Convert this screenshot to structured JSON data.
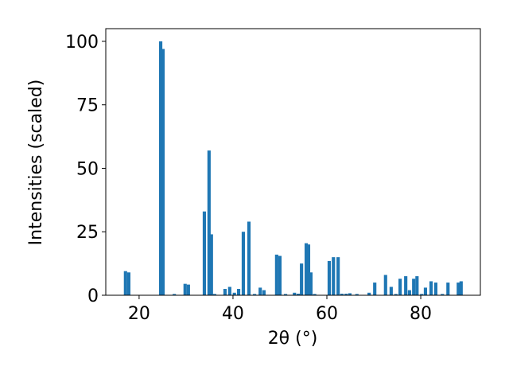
{
  "chart_data": {
    "type": "bar",
    "xlabel": "2θ (°)",
    "ylabel": "Intensities (scaled)",
    "x": [
      17.1,
      17.8,
      24.6,
      25.1,
      27.5,
      29.8,
      30.5,
      33.9,
      34.9,
      35.4,
      36.1,
      38.3,
      39.3,
      40.3,
      41.2,
      42.2,
      43.4,
      44.6,
      45.8,
      46.6,
      49.3,
      50.0,
      51.2,
      53.1,
      53.9,
      54.6,
      55.6,
      56.1,
      56.6,
      57.4,
      60.5,
      61.4,
      62.4,
      63.2,
      64.1,
      64.9,
      66.4,
      69.0,
      70.2,
      72.5,
      73.7,
      74.7,
      75.6,
      76.8,
      77.6,
      78.5,
      79.2,
      80.2,
      81.0,
      82.2,
      83.2,
      84.6,
      85.8,
      88.0,
      88.6
    ],
    "values": [
      9.5,
      9,
      100,
      97,
      0.5,
      4.5,
      4.2,
      33,
      57,
      24,
      0.5,
      2.5,
      3.3,
      1,
      2.5,
      25,
      29,
      0.5,
      3,
      2,
      16,
      15.5,
      0.5,
      1,
      0.6,
      12.5,
      20.5,
      20,
      9,
      0.5,
      13.5,
      15,
      15,
      0.6,
      0.6,
      0.8,
      0.5,
      1,
      5,
      8,
      3.3,
      0.5,
      6.5,
      7.5,
      2,
      6.5,
      7.5,
      0.5,
      3,
      5.5,
      5,
      0.5,
      5,
      5,
      5.5
    ],
    "color": "#1f77b4",
    "xlim": [
      12.9,
      92.7
    ],
    "xticks": [
      20,
      40,
      60,
      80
    ],
    "ylim": [
      0,
      105
    ],
    "yticks": [
      0,
      25,
      50,
      75,
      100
    ],
    "grid": false
  }
}
